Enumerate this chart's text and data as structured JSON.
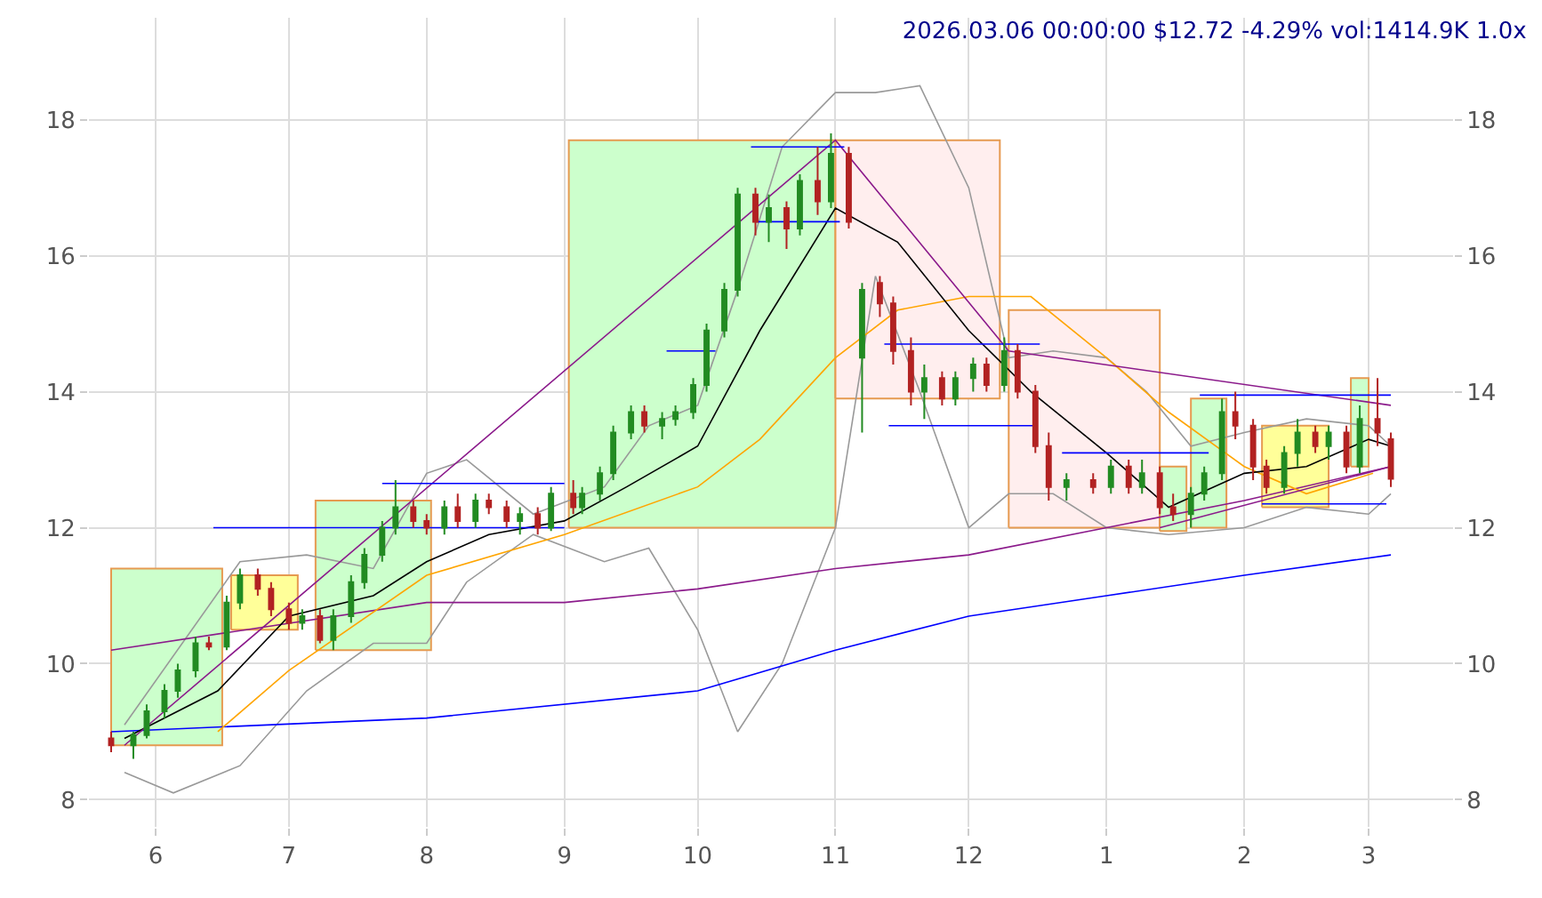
{
  "chart_data": {
    "type": "candlestick",
    "title": "2026.03.06 00:00:00 $12.72 -4.29% vol:1414.9K 1.0x",
    "grid": true,
    "xlim": [
      "2025-05-17",
      "2026-03-20"
    ],
    "xticks": [
      {
        "value": "2025-06-01",
        "label": "6"
      },
      {
        "value": "2025-07-01",
        "label": "7"
      },
      {
        "value": "2025-08-01",
        "label": "8"
      },
      {
        "value": "2025-09-01",
        "label": "9"
      },
      {
        "value": "2025-10-01",
        "label": "10"
      },
      {
        "value": "2025-11-01",
        "label": "11"
      },
      {
        "value": "2025-12-01",
        "label": "12"
      },
      {
        "value": "2026-01-01",
        "label": "1"
      },
      {
        "value": "2026-02-01",
        "label": "2"
      },
      {
        "value": "2026-03-01",
        "label": "3"
      }
    ],
    "ylim": [
      7.6,
      19.5
    ],
    "yticks": [
      8,
      10,
      12,
      14,
      16,
      18
    ],
    "y2lim": [
      7.6,
      19.5
    ],
    "y2ticks": [
      8,
      10,
      12,
      14,
      16,
      18
    ],
    "series": [
      {
        "type": "area",
        "color": "#ccffcc",
        "x": [
          "2025-05-22",
          "2025-06-16",
          "2025-06-16",
          "2025-05-22",
          "2025-05-22"
        ],
        "values": [
          8.8,
          8.8,
          11.4,
          11.4,
          8.8
        ]
      },
      {
        "type": "area",
        "color": "#ffff99",
        "x": [
          "2025-06-18",
          "2025-07-03",
          "2025-07-03",
          "2025-06-18",
          "2025-06-18"
        ],
        "values": [
          10.5,
          10.5,
          11.3,
          11.3,
          10.5
        ]
      },
      {
        "type": "area",
        "color": "#ccffcc",
        "x": [
          "2025-07-07",
          "2025-08-02",
          "2025-08-02",
          "2025-07-07",
          "2025-07-07"
        ],
        "values": [
          10.2,
          10.2,
          12.4,
          12.4,
          10.2
        ]
      },
      {
        "type": "area",
        "color": "#ccffcc",
        "x": [
          "2025-09-02",
          "2025-11-01",
          "2025-11-01",
          "2025-09-02",
          "2025-09-02"
        ],
        "values": [
          12.0,
          12.0,
          17.7,
          17.7,
          12.0
        ]
      },
      {
        "type": "area",
        "color": "#ffeeee",
        "x": [
          "2025-11-01",
          "2025-12-08",
          "2025-12-08",
          "2025-11-01",
          "2025-11-01"
        ],
        "values": [
          13.9,
          13.9,
          17.7,
          17.7,
          13.9
        ]
      },
      {
        "type": "area",
        "color": "#ffeeee",
        "x": [
          "2025-12-10",
          "2026-01-13",
          "2026-01-13",
          "2025-12-10",
          "2025-12-10"
        ],
        "values": [
          12.0,
          12.0,
          15.2,
          15.2,
          12.0
        ]
      },
      {
        "type": "area",
        "color": "#ccffcc",
        "x": [
          "2026-01-13",
          "2026-01-19",
          "2026-01-19",
          "2026-01-13",
          "2026-01-13"
        ],
        "values": [
          11.95,
          11.95,
          12.9,
          12.9,
          11.95
        ]
      },
      {
        "type": "area",
        "color": "#ccffcc",
        "x": [
          "2026-01-20",
          "2026-01-28",
          "2026-01-28",
          "2026-01-20",
          "2026-01-20"
        ],
        "values": [
          12.0,
          12.0,
          13.9,
          13.9,
          12.0
        ]
      },
      {
        "type": "area",
        "color": "#ffff99",
        "x": [
          "2026-02-05",
          "2026-02-20",
          "2026-02-20",
          "2026-02-05",
          "2026-02-05"
        ],
        "values": [
          12.3,
          12.3,
          13.5,
          13.5,
          12.3
        ]
      },
      {
        "type": "area",
        "color": "#ccffcc",
        "x": [
          "2026-02-25",
          "2026-03-01",
          "2026-03-01",
          "2026-02-25",
          "2026-02-25"
        ],
        "values": [
          12.9,
          12.9,
          14.2,
          14.2,
          12.9
        ]
      },
      {
        "type": "line",
        "color": "#999999",
        "x": [
          "2025-05-25",
          "2025-06-20",
          "2025-07-05",
          "2025-07-20",
          "2025-08-01",
          "2025-08-10",
          "2025-08-25",
          "2025-09-10",
          "2025-09-20",
          "2025-10-01",
          "2025-10-10",
          "2025-10-20",
          "2025-11-01",
          "2025-11-10",
          "2025-11-20",
          "2025-12-01",
          "2025-12-10",
          "2025-12-20",
          "2026-01-01",
          "2026-01-10",
          "2026-01-20",
          "2026-02-01",
          "2026-02-15",
          "2026-03-01",
          "2026-03-06"
        ],
        "values": [
          9.1,
          11.5,
          11.6,
          11.4,
          12.8,
          13.0,
          12.2,
          12.6,
          13.5,
          13.8,
          15.5,
          17.6,
          18.4,
          18.4,
          18.5,
          17.0,
          14.5,
          14.6,
          14.5,
          14.0,
          13.2,
          13.4,
          13.6,
          13.5,
          13.2
        ]
      },
      {
        "type": "line",
        "color": "#999999",
        "x": [
          "2025-05-25",
          "2025-06-05",
          "2025-06-20",
          "2025-07-05",
          "2025-07-20",
          "2025-08-01",
          "2025-08-10",
          "2025-08-25",
          "2025-09-10",
          "2025-09-20",
          "2025-10-01",
          "2025-10-10",
          "2025-10-20",
          "2025-11-01",
          "2025-11-10",
          "2025-11-20",
          "2025-12-01",
          "2025-12-10",
          "2025-12-20",
          "2026-01-01",
          "2026-01-15",
          "2026-02-01",
          "2026-02-15",
          "2026-03-01",
          "2026-03-06"
        ],
        "values": [
          8.4,
          8.1,
          8.5,
          9.6,
          10.3,
          10.3,
          11.2,
          11.9,
          11.5,
          11.7,
          10.5,
          9.0,
          10.0,
          12.0,
          15.7,
          14.0,
          12.0,
          12.5,
          12.5,
          12.0,
          11.9,
          12.0,
          12.3,
          12.2,
          12.5
        ]
      },
      {
        "type": "line",
        "color": "#0000ff",
        "x": [
          "2025-05-22",
          "2025-08-01",
          "2025-10-01",
          "2025-11-01",
          "2025-12-01",
          "2026-01-01",
          "2026-02-01",
          "2026-03-06"
        ],
        "values": [
          9.0,
          9.2,
          9.6,
          10.2,
          10.7,
          11.0,
          11.3,
          11.6
        ]
      },
      {
        "type": "line",
        "color": "#8b1a8b",
        "x": [
          "2025-05-22",
          "2025-08-01",
          "2025-09-01",
          "2025-10-01",
          "2025-11-01",
          "2025-12-01",
          "2026-01-01",
          "2026-02-01",
          "2026-03-06"
        ],
        "values": [
          10.2,
          10.9,
          10.9,
          11.1,
          11.4,
          11.6,
          12.0,
          12.4,
          12.9
        ]
      },
      {
        "type": "line",
        "color": "#ffa500",
        "x": [
          "2025-06-15",
          "2025-07-01",
          "2025-08-01",
          "2025-09-01",
          "2025-10-01",
          "2025-10-15",
          "2025-11-01",
          "2025-11-15",
          "2025-12-01",
          "2025-12-15",
          "2026-01-01",
          "2026-01-15",
          "2026-02-01",
          "2026-02-15",
          "2026-03-02"
        ],
        "values": [
          9.0,
          9.9,
          11.3,
          11.9,
          12.6,
          13.3,
          14.5,
          15.2,
          15.4,
          15.4,
          14.5,
          13.7,
          12.9,
          12.5,
          12.8
        ]
      },
      {
        "type": "line",
        "color": "#000000",
        "x": [
          "2025-05-25",
          "2025-06-15",
          "2025-07-01",
          "2025-07-20",
          "2025-08-01",
          "2025-08-15",
          "2025-09-01",
          "2025-09-15",
          "2025-10-01",
          "2025-10-15",
          "2025-11-01",
          "2025-11-15",
          "2025-12-01",
          "2025-12-15",
          "2026-01-01",
          "2026-01-15",
          "2026-02-01",
          "2026-02-15",
          "2026-03-01",
          "2026-03-06"
        ],
        "values": [
          8.9,
          9.6,
          10.7,
          11.0,
          11.5,
          11.9,
          12.1,
          12.6,
          13.2,
          14.9,
          16.7,
          16.2,
          14.9,
          14.0,
          13.1,
          12.3,
          12.8,
          12.9,
          13.3,
          13.2
        ]
      },
      {
        "type": "line",
        "color": "#8b1a8b",
        "x": [
          "2025-05-25",
          "2025-11-01",
          "2025-12-10",
          "2026-03-06"
        ],
        "values": [
          8.8,
          17.7,
          14.6,
          13.8
        ]
      },
      {
        "type": "line",
        "color": "#8b1a8b",
        "x": [
          "2026-01-13",
          "2026-03-06"
        ],
        "values": [
          12.0,
          12.9
        ]
      },
      {
        "type": "line",
        "color": "#0000ff",
        "x": [
          "2025-06-14",
          "2025-09-01"
        ],
        "values": [
          12.0,
          12.0
        ]
      },
      {
        "type": "line",
        "color": "#0000ff",
        "x": [
          "2025-07-22",
          "2025-09-01"
        ],
        "values": [
          12.65,
          12.65
        ]
      },
      {
        "type": "line",
        "color": "#0000ff",
        "x": [
          "2025-09-24",
          "2025-10-05"
        ],
        "values": [
          14.6,
          14.6
        ]
      },
      {
        "type": "line",
        "color": "#0000ff",
        "x": [
          "2025-10-13",
          "2025-11-03"
        ],
        "values": [
          17.6,
          17.6
        ]
      },
      {
        "type": "line",
        "color": "#0000ff",
        "x": [
          "2025-10-14",
          "2025-11-02"
        ],
        "values": [
          16.5,
          16.5
        ]
      },
      {
        "type": "line",
        "color": "#0000ff",
        "x": [
          "2025-11-12",
          "2025-12-17"
        ],
        "values": [
          14.7,
          14.7
        ]
      },
      {
        "type": "line",
        "color": "#0000ff",
        "x": [
          "2025-11-13",
          "2025-12-16"
        ],
        "values": [
          13.5,
          13.5
        ]
      },
      {
        "type": "line",
        "color": "#0000ff",
        "x": [
          "2025-12-22",
          "2026-01-24"
        ],
        "values": [
          13.1,
          13.1
        ]
      },
      {
        "type": "line",
        "color": "#0000ff",
        "x": [
          "2026-01-22",
          "2026-03-06"
        ],
        "values": [
          13.95,
          13.95
        ]
      },
      {
        "type": "line",
        "color": "#0000ff",
        "x": [
          "2026-02-05",
          "2026-03-05"
        ],
        "values": [
          12.35,
          12.35
        ]
      },
      {
        "color": "#228b22",
        "x": [
          "2025-05-30",
          "2025-06-03",
          "2025-06-06",
          "2025-06-10",
          "2025-06-17",
          "2025-06-20",
          "2025-07-04",
          "2025-07-11",
          "2025-07-15",
          "2025-07-18",
          "2025-07-22",
          "2025-07-25",
          "2025-08-05",
          "2025-08-12",
          "2025-08-22",
          "2025-08-29",
          "2025-09-05",
          "2025-09-09",
          "2025-09-12",
          "2025-09-16",
          "2025-09-23",
          "2025-09-26",
          "2025-09-30",
          "2025-10-03",
          "2025-10-07",
          "2025-10-10",
          "2025-10-17",
          "2025-10-24",
          "2025-10-31",
          "2025-11-07",
          "2025-11-21",
          "2025-11-28",
          "2025-12-02",
          "2025-12-09",
          "2025-12-23",
          "2026-01-02",
          "2026-01-09",
          "2026-01-20",
          "2026-01-23",
          "2026-01-27",
          "2026-02-10",
          "2026-02-13",
          "2026-02-20",
          "2026-02-27",
          "2025-05-27"
        ],
        "ohlc": [
          [
            8.95,
            9.4,
            8.9,
            9.3
          ],
          [
            9.3,
            9.7,
            9.2,
            9.6
          ],
          [
            9.6,
            10.0,
            9.5,
            9.9
          ],
          [
            9.9,
            10.4,
            9.8,
            10.3
          ],
          [
            10.25,
            11.0,
            10.2,
            10.9
          ],
          [
            10.9,
            11.4,
            10.8,
            11.3
          ],
          [
            10.6,
            10.8,
            10.5,
            10.7
          ],
          [
            10.35,
            10.8,
            10.2,
            10.7
          ],
          [
            10.7,
            11.3,
            10.6,
            11.2
          ],
          [
            11.2,
            11.7,
            11.1,
            11.6
          ],
          [
            11.6,
            12.1,
            11.5,
            12.0
          ],
          [
            12.0,
            12.7,
            11.9,
            12.3
          ],
          [
            12.0,
            12.4,
            11.9,
            12.3
          ],
          [
            12.1,
            12.5,
            12.0,
            12.4
          ],
          [
            12.1,
            12.3,
            11.9,
            12.2
          ],
          [
            12.0,
            12.6,
            11.95,
            12.5
          ],
          [
            12.3,
            12.6,
            12.2,
            12.5
          ],
          [
            12.5,
            12.9,
            12.4,
            12.8
          ],
          [
            12.8,
            13.5,
            12.7,
            13.4
          ],
          [
            13.4,
            13.8,
            13.3,
            13.7
          ],
          [
            13.5,
            13.7,
            13.3,
            13.6
          ],
          [
            13.6,
            13.8,
            13.5,
            13.7
          ],
          [
            13.7,
            14.2,
            13.6,
            14.1
          ],
          [
            14.1,
            15.0,
            14.0,
            14.9
          ],
          [
            14.9,
            15.6,
            14.8,
            15.5
          ],
          [
            15.5,
            17.0,
            15.4,
            16.9
          ],
          [
            16.5,
            16.9,
            16.2,
            16.7
          ],
          [
            16.4,
            17.2,
            16.3,
            17.1
          ],
          [
            16.8,
            17.8,
            16.7,
            17.5
          ],
          [
            14.5,
            15.6,
            13.4,
            15.5
          ],
          [
            14.0,
            14.4,
            13.6,
            14.2
          ],
          [
            13.9,
            14.3,
            13.8,
            14.2
          ],
          [
            14.2,
            14.5,
            14.0,
            14.4
          ],
          [
            14.1,
            14.8,
            14.0,
            14.6
          ],
          [
            12.6,
            12.8,
            12.4,
            12.7
          ],
          [
            12.6,
            13.0,
            12.5,
            12.9
          ],
          [
            12.6,
            13.0,
            12.5,
            12.8
          ],
          [
            12.2,
            12.6,
            12.0,
            12.5
          ],
          [
            12.5,
            12.9,
            12.4,
            12.8
          ],
          [
            12.8,
            13.9,
            12.7,
            13.7
          ],
          [
            12.6,
            13.2,
            12.5,
            13.1
          ],
          [
            13.1,
            13.6,
            12.9,
            13.4
          ],
          [
            13.2,
            13.5,
            13.0,
            13.4
          ],
          [
            12.9,
            13.8,
            12.8,
            13.6
          ],
          [
            8.8,
            9.0,
            8.6,
            8.95
          ]
        ]
      },
      {
        "color": "#b22222",
        "x": [
          "2025-05-22",
          "2025-06-13",
          "2025-06-24",
          "2025-06-27",
          "2025-07-01",
          "2025-07-08",
          "2025-07-29",
          "2025-08-01",
          "2025-08-08",
          "2025-08-15",
          "2025-08-19",
          "2025-08-26",
          "2025-09-03",
          "2025-09-19",
          "2025-10-14",
          "2025-10-21",
          "2025-10-28",
          "2025-11-04",
          "2025-11-11",
          "2025-11-14",
          "2025-11-18",
          "2025-11-25",
          "2025-12-05",
          "2025-12-12",
          "2025-12-16",
          "2025-12-19",
          "2025-12-29",
          "2026-01-06",
          "2026-01-13",
          "2026-01-16",
          "2026-01-30",
          "2026-02-03",
          "2026-02-06",
          "2026-02-17",
          "2026-02-24",
          "2026-03-03",
          "2026-03-06"
        ],
        "ohlc": [
          [
            8.9,
            9.0,
            8.7,
            8.8
          ],
          [
            10.3,
            10.4,
            10.2,
            10.25
          ],
          [
            11.3,
            11.4,
            11.0,
            11.1
          ],
          [
            11.1,
            11.2,
            10.7,
            10.8
          ],
          [
            10.8,
            10.9,
            10.5,
            10.6
          ],
          [
            10.7,
            10.8,
            10.3,
            10.35
          ],
          [
            12.3,
            12.4,
            12.0,
            12.1
          ],
          [
            12.1,
            12.2,
            11.9,
            12.0
          ],
          [
            12.3,
            12.5,
            12.0,
            12.1
          ],
          [
            12.4,
            12.5,
            12.2,
            12.3
          ],
          [
            12.3,
            12.4,
            12.0,
            12.1
          ],
          [
            12.2,
            12.3,
            11.9,
            12.0
          ],
          [
            12.5,
            12.7,
            12.2,
            12.3
          ],
          [
            13.7,
            13.8,
            13.4,
            13.5
          ],
          [
            16.9,
            17.0,
            16.3,
            16.5
          ],
          [
            16.7,
            16.8,
            16.1,
            16.4
          ],
          [
            17.1,
            17.6,
            16.6,
            16.8
          ],
          [
            17.5,
            17.6,
            16.4,
            16.5
          ],
          [
            15.6,
            15.7,
            15.1,
            15.3
          ],
          [
            15.3,
            15.4,
            14.4,
            14.6
          ],
          [
            14.6,
            14.8,
            13.8,
            14.0
          ],
          [
            14.2,
            14.3,
            13.8,
            13.9
          ],
          [
            14.4,
            14.5,
            14.0,
            14.1
          ],
          [
            14.6,
            14.7,
            13.9,
            14.0
          ],
          [
            14.0,
            14.1,
            13.1,
            13.2
          ],
          [
            13.2,
            13.4,
            12.4,
            12.6
          ],
          [
            12.7,
            12.8,
            12.5,
            12.6
          ],
          [
            12.9,
            13.0,
            12.5,
            12.6
          ],
          [
            12.8,
            12.9,
            12.2,
            12.3
          ],
          [
            12.3,
            12.5,
            12.1,
            12.2
          ],
          [
            13.7,
            14.0,
            13.3,
            13.5
          ],
          [
            13.5,
            13.6,
            12.7,
            12.9
          ],
          [
            12.9,
            13.0,
            12.5,
            12.6
          ],
          [
            13.4,
            13.5,
            13.1,
            13.2
          ],
          [
            13.4,
            13.5,
            12.8,
            12.9
          ],
          [
            13.6,
            14.2,
            13.2,
            13.4
          ],
          [
            13.3,
            13.4,
            12.6,
            12.72
          ]
        ]
      }
    ]
  }
}
